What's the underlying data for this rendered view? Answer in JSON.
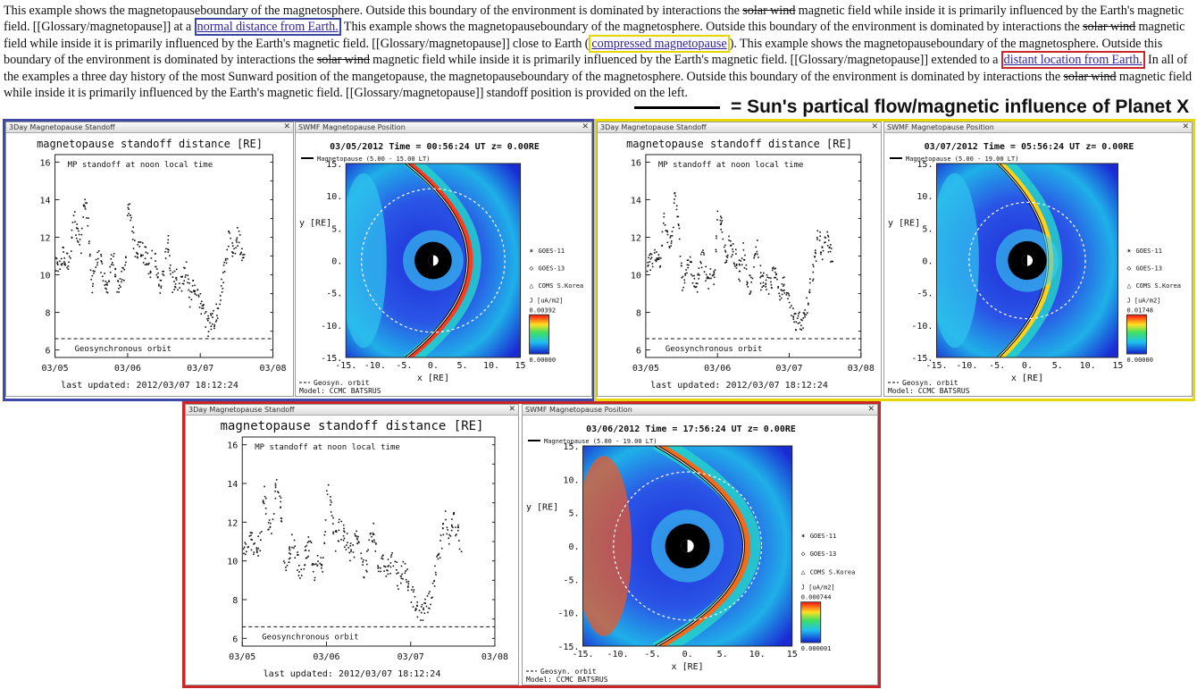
{
  "paragraph": {
    "seg1": "This example shows the magnetopauseboundary of the magnetosphere. Outside this boundary of the environment is dominated by interactions the ",
    "strike1": "solar wind",
    "seg2": " magnetic field while inside it is primarily influenced by the Earth's magnetic field. [[Glossary/magnetopause]] at a ",
    "link_normal": "normal distance from Earth.",
    "seg3": " This example shows the magnetopauseboundary of the magnetosphere. Outside this boundary of the environment is dominated by interactions the ",
    "strike2": "solar wind",
    "seg4": " magnetic field while inside it is primarily influenced by the Earth's magnetic field. [[Glossary/magnetopause]] close to Earth (",
    "link_compressed": "compressed magnetopause",
    "seg5": "). This example shows the magnetopauseboundary of the magnetosphere. Outside this boundary of the environment is dominated by interactions the ",
    "strike3": "solar wind",
    "seg6": " magnetic field while inside it is primarily influenced by the Earth's magnetic field. [[Glossary/magnetopause]] extended to a ",
    "link_distant": "distant location from Earth.",
    "seg7": " In all of the examples a three day history of the most Sunward position of the mangetopause, the magnetopauseboundary of the magnetosphere. Outside this boundary of the environment is dominated by interactions the ",
    "strike4": "solar wind",
    "seg8": " magnetic field while inside it is primarily influenced by the Earth's magnetic field. [[Glossary/magnetopause]] standoff position is provided on the left."
  },
  "legend": {
    "label": "= Sun's partical flow/magnetic influence of Planet X"
  },
  "colors": {
    "blue_frame": "#3f4aa6",
    "yellow_frame": "#e7d900",
    "red_frame": "#cc2528"
  },
  "standoff_common": {
    "window_title": "3Day Magnetopause Standoff",
    "chart_title": "magnetopause standoff distance [RE]",
    "series_label": "MP standoff at noon local time",
    "geo_label": "Geosynchronous orbit",
    "y_ticks": [
      "16",
      "14",
      "12",
      "10",
      "8",
      "6"
    ],
    "x_ticks": [
      "03/05",
      "03/06",
      "03/07",
      "03/08"
    ],
    "updated": "last updated: 2012/03/07  18:12:24"
  },
  "position_common": {
    "window_title": "SWMF Magnetopause Position",
    "legend_mp": "Magnetopause",
    "y_ticks": [
      "15.",
      "10.",
      "5.",
      "0.",
      "-5.",
      "-10.",
      "-15."
    ],
    "x_ticks": [
      "-15.",
      "-10.",
      "-5.",
      "0.",
      "5.",
      "10.",
      "15"
    ],
    "x_axis_label": "x [RE]",
    "y_axis_label": "y [RE]",
    "sat1": "GOES-11",
    "sat2": "GOES-13",
    "sat3": "COMS S.Korea",
    "geosyn": "Geosyn. orbit",
    "model": "Model: CCMC BATSRUS",
    "j_label": "J [uA/m2]",
    "j_min": "0.00000"
  },
  "panels": [
    {
      "id": "normal",
      "position_header": "03/05/2012 Time = 00:56:24 UT z= 0.00RE",
      "legend_time": "(5.00 - 15.00 LT)",
      "j_max": "0.00392"
    },
    {
      "id": "compressed",
      "position_header": "03/07/2012 Time = 05:56:24 UT z= 0.00RE",
      "legend_time": "(5.00 - 19.00 LT)",
      "j_max": "0.01748"
    },
    {
      "id": "distant",
      "position_header": "03/06/2012 Time = 17:56:24 UT z= 0.00RE",
      "legend_time": "(5.00 - 19.00 LT)",
      "j_max": "0.000744",
      "j_min": "0.000001"
    }
  ],
  "standoff_series": {
    "x_days_from_0305": [
      0.0,
      0.05,
      0.1,
      0.15,
      0.2,
      0.25,
      0.3,
      0.35,
      0.4,
      0.45,
      0.5,
      0.55,
      0.6,
      0.65,
      0.7,
      0.75,
      0.8,
      0.85,
      0.9,
      0.95,
      1.0,
      1.05,
      1.1,
      1.15,
      1.2,
      1.25,
      1.3,
      1.35,
      1.4,
      1.45,
      1.5,
      1.55,
      1.6,
      1.65,
      1.7,
      1.75,
      1.8,
      1.85,
      1.9,
      1.95,
      2.0,
      2.05,
      2.1,
      2.15,
      2.2,
      2.25,
      2.3,
      2.35,
      2.4,
      2.45,
      2.5,
      2.55,
      2.6
    ],
    "standoff_re": [
      10.5,
      10.8,
      11.0,
      10.7,
      10.9,
      13.5,
      12.0,
      11.5,
      14.3,
      12.8,
      9.5,
      10.3,
      11.2,
      9.9,
      9.2,
      10.5,
      11.0,
      9.4,
      10.0,
      9.8,
      13.8,
      12.6,
      11.0,
      11.8,
      11.3,
      10.9,
      10.2,
      11.4,
      10.0,
      9.4,
      10.8,
      11.6,
      9.6,
      9.9,
      9.5,
      9.8,
      10.3,
      8.8,
      9.6,
      9.2,
      8.4,
      7.9,
      7.3,
      7.6,
      7.8,
      8.6,
      9.8,
      10.8,
      12.4,
      11.0,
      12.2,
      11.5,
      10.8
    ],
    "geosync_re": 6.6
  }
}
